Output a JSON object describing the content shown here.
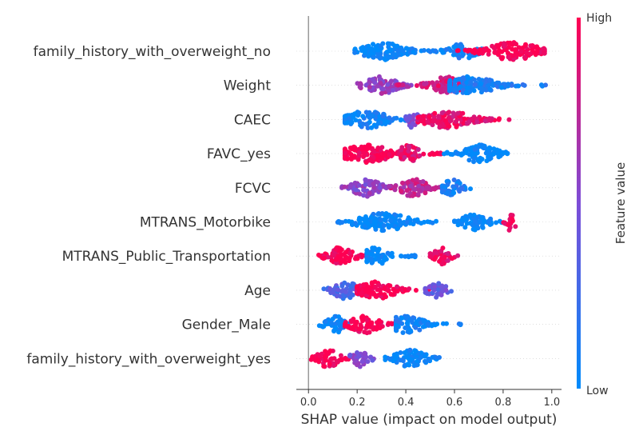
{
  "chart_data": {
    "type": "scatter",
    "subtype": "shap-beeswarm",
    "title": "",
    "xlabel": "SHAP value (impact on model output)",
    "ylabel": "",
    "xlim": [
      -0.05,
      1.04
    ],
    "xticks": [
      0.0,
      0.2,
      0.4,
      0.6,
      0.8,
      1.0
    ],
    "xtick_labels": [
      "0.0",
      "0.2",
      "0.4",
      "0.6",
      "0.8",
      "1.0"
    ],
    "grid": false,
    "colorbar": {
      "label": "Feature value",
      "high_label": "High",
      "low_label": "Low",
      "low_color": "#008bfb",
      "high_color": "#ff0052"
    },
    "features": [
      {
        "name": "family_history_with_overweight_no",
        "clusters": [
          {
            "min": 0.19,
            "max": 0.52,
            "center": 0.31,
            "color": 0.0
          },
          {
            "min": 0.52,
            "max": 0.72,
            "center": 0.64,
            "color": 0.05
          },
          {
            "min": 0.56,
            "max": 0.97,
            "center": 0.84,
            "color": 1.0
          }
        ]
      },
      {
        "name": "Weight",
        "clusters": [
          {
            "min": 0.2,
            "max": 0.45,
            "center": 0.3,
            "color": 0.6
          },
          {
            "min": 0.36,
            "max": 0.62,
            "center": 0.57,
            "color": 0.85
          },
          {
            "min": 0.58,
            "max": 0.99,
            "center": 0.66,
            "color": 0.1
          }
        ]
      },
      {
        "name": "CAEC",
        "clusters": [
          {
            "min": 0.15,
            "max": 0.48,
            "center": 0.24,
            "color": 0.05
          },
          {
            "min": 0.4,
            "max": 0.48,
            "center": 0.43,
            "color": 0.5
          },
          {
            "min": 0.45,
            "max": 0.83,
            "center": 0.57,
            "color": 0.9
          }
        ]
      },
      {
        "name": "FAVC_yes",
        "clusters": [
          {
            "min": 0.15,
            "max": 0.55,
            "center": 0.24,
            "color": 1.0
          },
          {
            "min": 0.38,
            "max": 0.52,
            "center": 0.41,
            "color": 0.9
          },
          {
            "min": 0.55,
            "max": 0.82,
            "center": 0.7,
            "color": 0.0
          }
        ]
      },
      {
        "name": "FCVC",
        "clusters": [
          {
            "min": 0.11,
            "max": 0.32,
            "center": 0.24,
            "color": 0.55
          },
          {
            "min": 0.32,
            "max": 0.55,
            "center": 0.43,
            "color": 0.75
          },
          {
            "min": 0.55,
            "max": 0.69,
            "center": 0.59,
            "color": 0.1
          }
        ]
      },
      {
        "name": "MTRANS_Motorbike",
        "clusters": [
          {
            "min": 0.12,
            "max": 0.53,
            "center": 0.31,
            "color": 0.0
          },
          {
            "min": 0.6,
            "max": 0.81,
            "center": 0.68,
            "color": 0.0
          },
          {
            "min": 0.8,
            "max": 0.86,
            "center": 0.83,
            "color": 1.0
          }
        ]
      },
      {
        "name": "MTRANS_Public_Transportation",
        "clusters": [
          {
            "min": 0.04,
            "max": 0.24,
            "center": 0.13,
            "color": 1.0
          },
          {
            "min": 0.24,
            "max": 0.44,
            "center": 0.28,
            "color": 0.0
          },
          {
            "min": 0.5,
            "max": 0.62,
            "center": 0.54,
            "color": 0.9
          }
        ]
      },
      {
        "name": "Age",
        "clusters": [
          {
            "min": 0.05,
            "max": 0.24,
            "center": 0.15,
            "color": 0.3
          },
          {
            "min": 0.2,
            "max": 0.5,
            "center": 0.28,
            "color": 1.0
          },
          {
            "min": 0.48,
            "max": 0.6,
            "center": 0.53,
            "color": 0.4
          }
        ]
      },
      {
        "name": "Gender_Male",
        "clusters": [
          {
            "min": 0.04,
            "max": 0.17,
            "center": 0.11,
            "color": 0.0
          },
          {
            "min": 0.15,
            "max": 0.36,
            "center": 0.23,
            "color": 1.0
          },
          {
            "min": 0.36,
            "max": 0.64,
            "center": 0.4,
            "color": 0.05
          }
        ]
      },
      {
        "name": "family_history_with_overweight_yes",
        "clusters": [
          {
            "min": 0.01,
            "max": 0.17,
            "center": 0.08,
            "color": 1.0
          },
          {
            "min": 0.17,
            "max": 0.28,
            "center": 0.21,
            "color": 0.5
          },
          {
            "min": 0.3,
            "max": 0.54,
            "center": 0.42,
            "color": 0.0
          }
        ]
      }
    ]
  }
}
